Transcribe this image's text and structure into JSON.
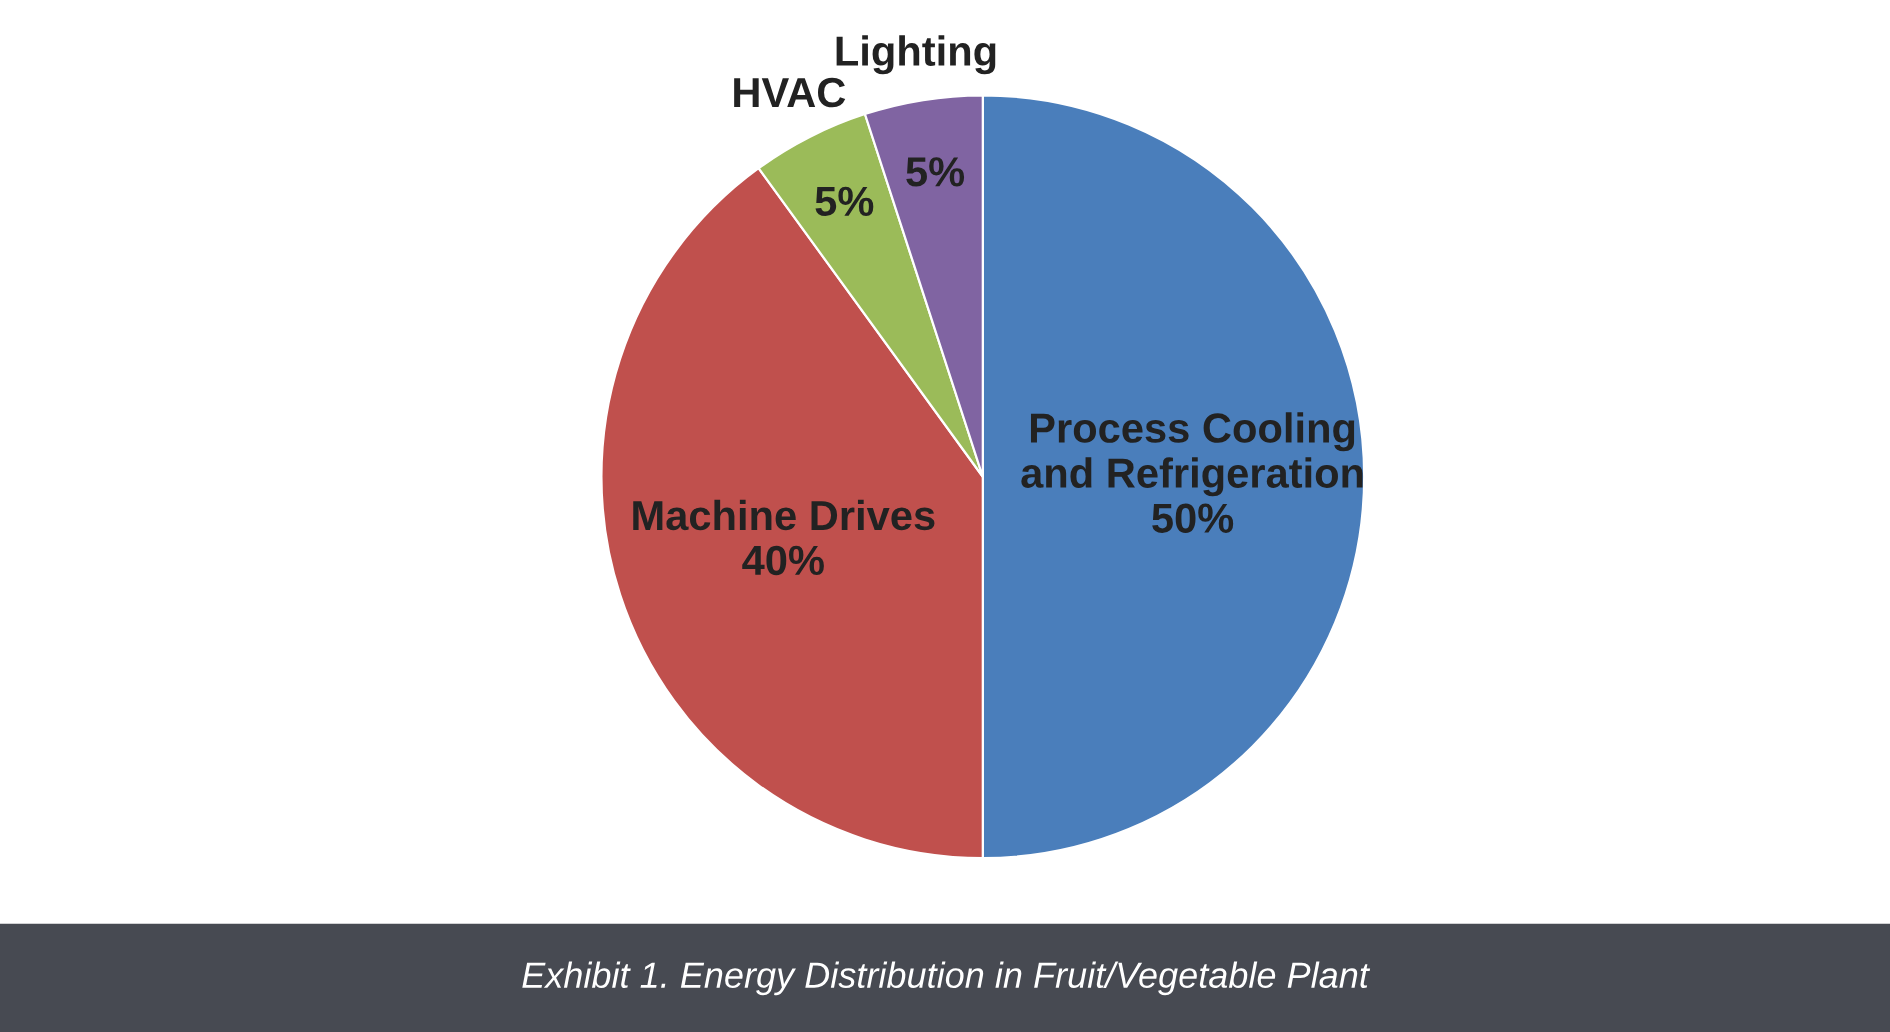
{
  "chart_data": {
    "type": "pie",
    "categories": [
      "Process Cooling\nand Refrigeration",
      "Machine Drives",
      "HVAC",
      "Lighting"
    ],
    "values": [
      50,
      40,
      5,
      5
    ],
    "value_labels": [
      "50%",
      "40%",
      "5%",
      "5%"
    ],
    "colors": [
      "#4a7ebb",
      "#c0504d",
      "#9bbb59",
      "#8064a2"
    ],
    "annotations": [
      "Exhibit 1. Energy Distribution in Fruit/Vegetable Plant"
    ],
    "legend": false
  }
}
